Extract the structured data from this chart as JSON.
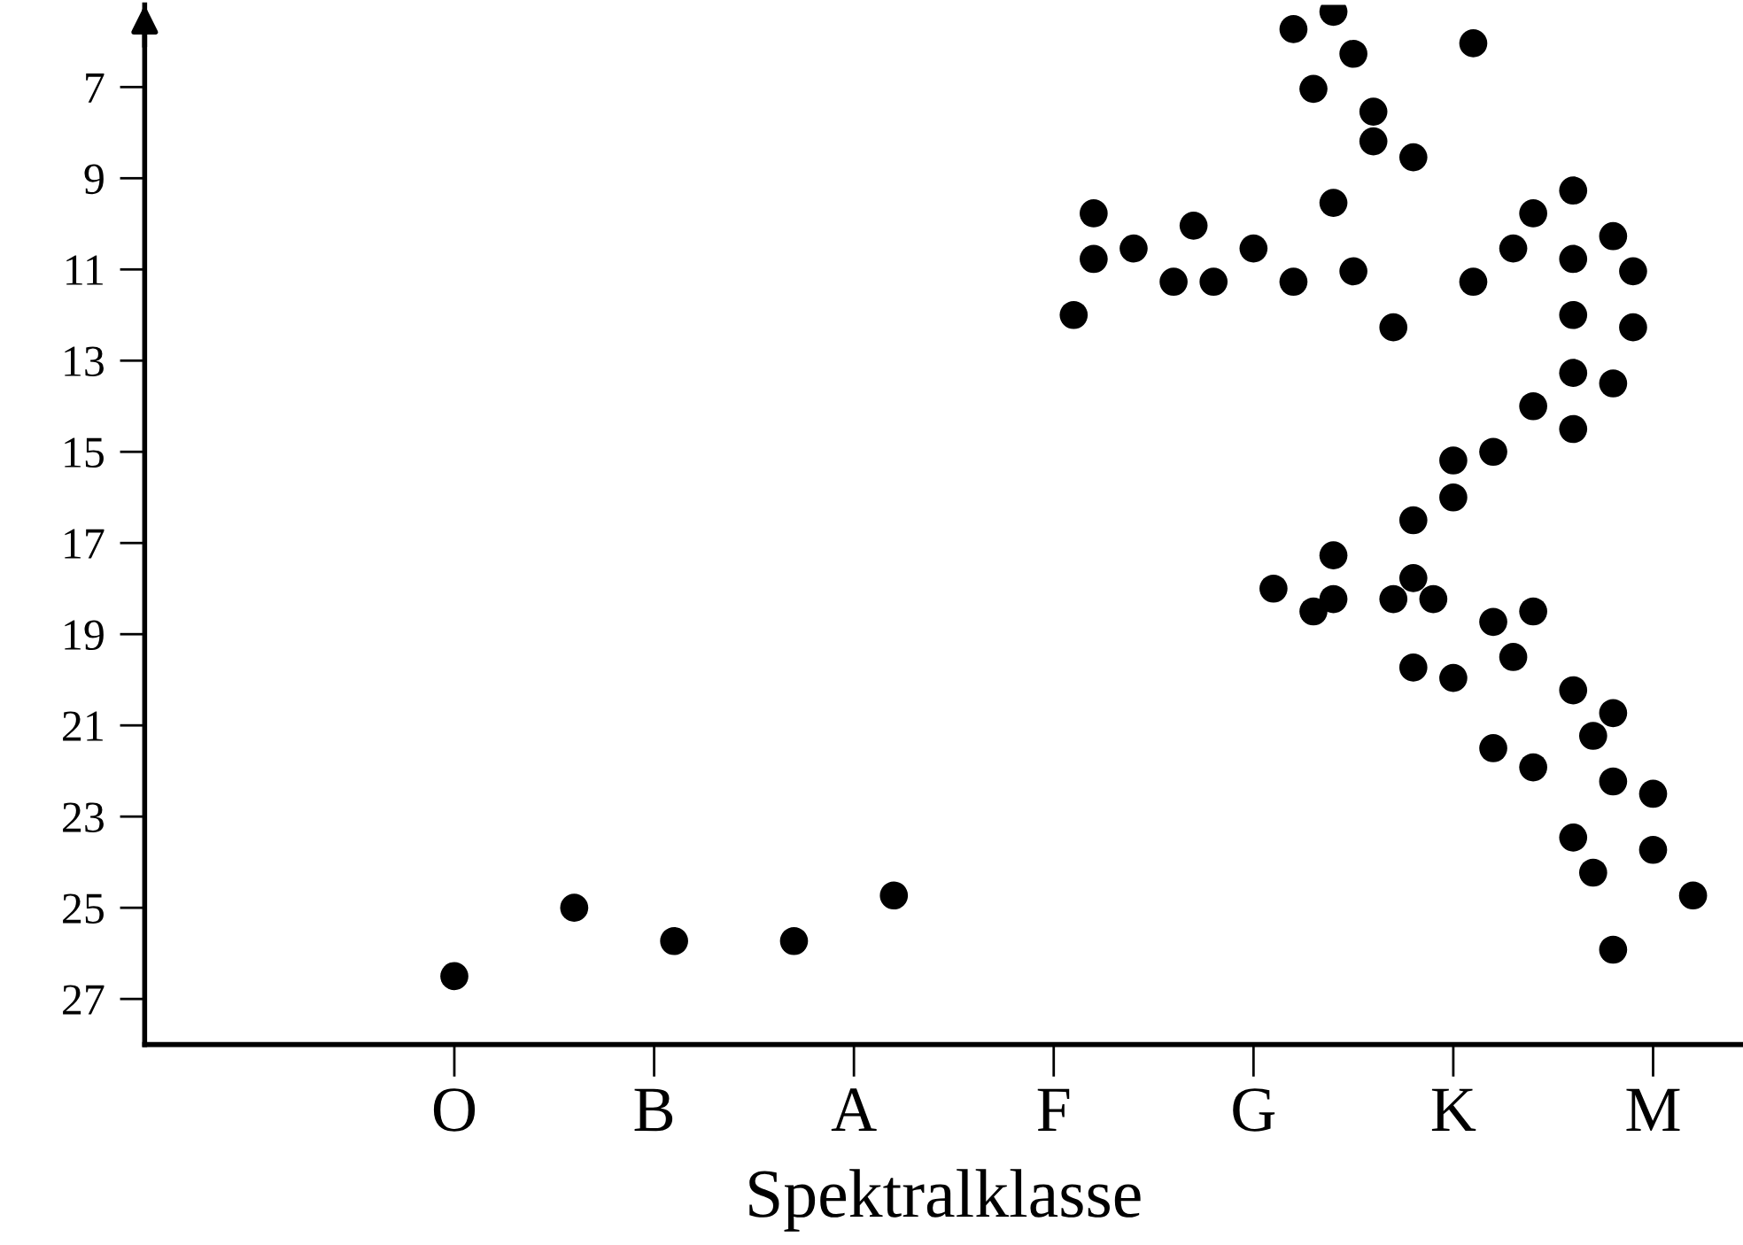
{
  "chart_data": {
    "type": "scatter",
    "xlabel": "Spektralklasse",
    "categories": [
      null,
      null,
      null,
      null,
      null,
      null,
      null,
      null,
      null,
      null,
      null,
      null,
      null,
      null,
      null,
      "O",
      null,
      null,
      null,
      null,
      null,
      null,
      null,
      null,
      null,
      "B",
      null,
      null,
      null,
      null,
      null,
      null,
      null,
      null,
      null,
      "A",
      null,
      null,
      null,
      null,
      null,
      null,
      null,
      null,
      null,
      "F",
      null,
      null,
      null,
      null,
      null,
      null,
      null,
      null,
      null,
      "G",
      null,
      null,
      null,
      null,
      null,
      null,
      null,
      null,
      null,
      "K",
      null,
      null,
      null,
      null,
      null,
      null,
      null,
      null,
      null,
      "M",
      null,
      null,
      null,
      null
    ],
    "ylim": [
      28,
      5.2
    ],
    "yticks": [
      7,
      9,
      11,
      13,
      15,
      17,
      19,
      21,
      23,
      25,
      27
    ],
    "grid": false,
    "marker": "circle",
    "series": [
      {
        "color": "#000000",
        "values": [
          null,
          null,
          null,
          null,
          null,
          null,
          null,
          null,
          null,
          null,
          null,
          null,
          null,
          null,
          null,
          26.5,
          null,
          null,
          null,
          null,
          null,
          25.0,
          null,
          null,
          null,
          null,
          25.73,
          null,
          null,
          null,
          null,
          null,
          25.73,
          null,
          null,
          null,
          null,
          24.73,
          null,
          null,
          null,
          null,
          null,
          null,
          null,
          null,
          12.0,
          10.77,
          null,
          10.54,
          null,
          11.27,
          10.04,
          11.27,
          null,
          10.54,
          18.0,
          11.27,
          7.04,
          5.35,
          6.27,
          8.19,
          12.27,
          8.54,
          18.23,
          15.19,
          6.04,
          15.0,
          10.54,
          9.77,
          null,
          9.27,
          21.23,
          10.27,
          11.04,
          22.5,
          null,
          24.73,
          null,
          null
        ]
      },
      {
        "color": "#000000",
        "values": [
          null,
          null,
          null,
          null,
          null,
          null,
          null,
          null,
          null,
          null,
          null,
          null,
          null,
          null,
          null,
          null,
          null,
          null,
          null,
          null,
          null,
          null,
          null,
          null,
          null,
          null,
          null,
          null,
          null,
          null,
          null,
          null,
          null,
          null,
          null,
          null,
          null,
          null,
          null,
          null,
          null,
          null,
          null,
          null,
          null,
          null,
          null,
          9.77,
          null,
          null,
          null,
          null,
          null,
          null,
          null,
          null,
          null,
          5.73,
          18.5,
          9.54,
          11.04,
          7.54,
          18.23,
          16.5,
          null,
          16.0,
          11.27,
          18.73,
          19.5,
          14.0,
          null,
          10.77,
          24.23,
          13.5,
          12.27,
          23.73,
          null,
          null,
          null,
          null
        ]
      },
      {
        "color": "#000000",
        "values": [
          null,
          null,
          null,
          null,
          null,
          null,
          null,
          null,
          null,
          null,
          null,
          null,
          null,
          null,
          null,
          null,
          null,
          null,
          null,
          null,
          null,
          null,
          null,
          null,
          null,
          null,
          null,
          null,
          null,
          null,
          null,
          null,
          null,
          null,
          null,
          null,
          null,
          null,
          null,
          null,
          null,
          null,
          null,
          null,
          null,
          null,
          null,
          null,
          null,
          null,
          null,
          null,
          null,
          null,
          null,
          null,
          null,
          null,
          null,
          17.27,
          null,
          null,
          null,
          17.77,
          null,
          19.96,
          null,
          21.5,
          null,
          18.5,
          null,
          12.0,
          null,
          20.73,
          null,
          null,
          null,
          null,
          null,
          null
        ]
      },
      {
        "color": "#000000",
        "values": [
          null,
          null,
          null,
          null,
          null,
          null,
          null,
          null,
          null,
          null,
          null,
          null,
          null,
          null,
          null,
          null,
          null,
          null,
          null,
          null,
          null,
          null,
          null,
          null,
          null,
          null,
          null,
          null,
          null,
          null,
          null,
          null,
          null,
          null,
          null,
          null,
          null,
          null,
          null,
          null,
          null,
          null,
          null,
          null,
          null,
          null,
          null,
          null,
          null,
          null,
          null,
          null,
          null,
          null,
          null,
          null,
          null,
          null,
          null,
          18.23,
          null,
          null,
          null,
          19.73,
          null,
          null,
          null,
          null,
          null,
          21.92,
          null,
          13.27,
          null,
          22.23,
          null,
          null,
          null,
          null,
          null,
          null
        ]
      },
      {
        "color": "#000000",
        "values": [
          null,
          null,
          null,
          null,
          null,
          null,
          null,
          null,
          null,
          null,
          null,
          null,
          null,
          null,
          null,
          null,
          null,
          null,
          null,
          null,
          null,
          null,
          null,
          null,
          null,
          null,
          null,
          null,
          null,
          null,
          null,
          null,
          null,
          null,
          null,
          null,
          null,
          null,
          null,
          null,
          null,
          null,
          null,
          null,
          null,
          null,
          null,
          null,
          null,
          null,
          null,
          null,
          null,
          null,
          null,
          null,
          null,
          null,
          null,
          null,
          null,
          null,
          null,
          null,
          null,
          null,
          null,
          null,
          null,
          null,
          null,
          14.5,
          null,
          25.92,
          null,
          null,
          null,
          null,
          null,
          null
        ]
      },
      {
        "color": "#000000",
        "values": [
          null,
          null,
          null,
          null,
          null,
          null,
          null,
          null,
          null,
          null,
          null,
          null,
          null,
          null,
          null,
          null,
          null,
          null,
          null,
          null,
          null,
          null,
          null,
          null,
          null,
          null,
          null,
          null,
          null,
          null,
          null,
          null,
          null,
          null,
          null,
          null,
          null,
          null,
          null,
          null,
          null,
          null,
          null,
          null,
          null,
          null,
          null,
          null,
          null,
          null,
          null,
          null,
          null,
          null,
          null,
          null,
          null,
          null,
          null,
          null,
          null,
          null,
          null,
          null,
          null,
          null,
          null,
          null,
          null,
          null,
          null,
          20.23,
          null,
          null,
          null,
          null,
          null,
          null,
          null,
          null
        ]
      },
      {
        "color": "#000000",
        "values": [
          null,
          null,
          null,
          null,
          null,
          null,
          null,
          null,
          null,
          null,
          null,
          null,
          null,
          null,
          null,
          null,
          null,
          null,
          null,
          null,
          null,
          null,
          null,
          null,
          null,
          null,
          null,
          null,
          null,
          null,
          null,
          null,
          null,
          null,
          null,
          null,
          null,
          null,
          null,
          null,
          null,
          null,
          null,
          null,
          null,
          null,
          null,
          null,
          null,
          null,
          null,
          null,
          null,
          null,
          null,
          null,
          null,
          null,
          null,
          null,
          null,
          null,
          null,
          null,
          null,
          null,
          null,
          null,
          null,
          null,
          null,
          23.46,
          null,
          null,
          null,
          null,
          null,
          null,
          null,
          null
        ]
      }
    ]
  }
}
